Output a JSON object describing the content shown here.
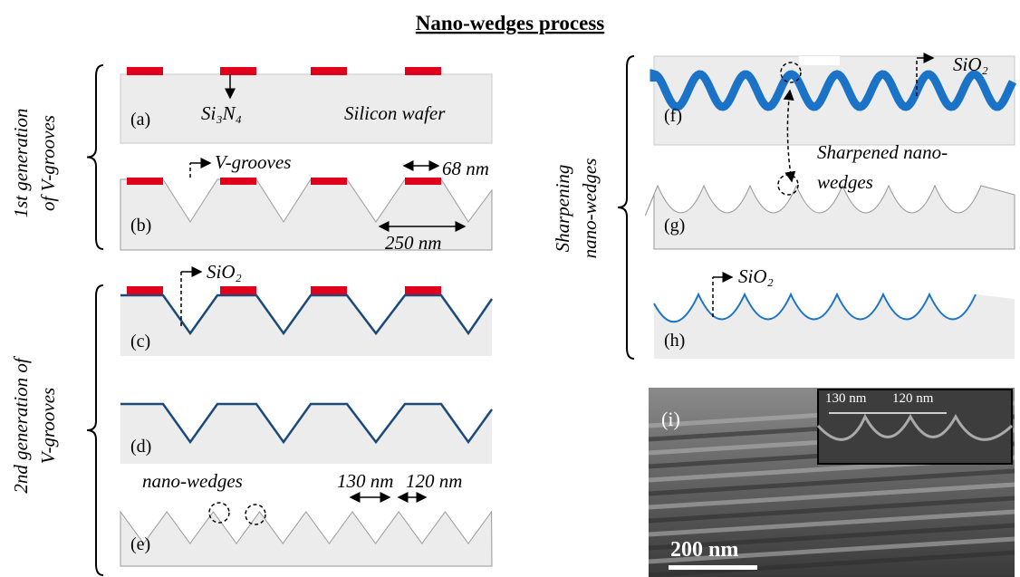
{
  "header": {
    "title": "Nano-wedges process"
  },
  "groups": [
    {
      "lines": [
        "1st generation",
        "of V-grooves"
      ]
    },
    {
      "lines": [
        "2nd generation of",
        "V-grooves"
      ]
    },
    {
      "lines": [
        "Sharpening",
        "nano-wedges"
      ]
    }
  ],
  "panels": {
    "a": {
      "label": "(a)",
      "annotations": [
        "Si₃N₄",
        "Silicon wafer"
      ]
    },
    "b": {
      "label": "(b)",
      "annotations": [
        "V-grooves",
        "68 nm",
        "250 nm"
      ]
    },
    "c": {
      "label": "(c)",
      "annotations": [
        "SiO₂"
      ]
    },
    "d": {
      "label": "(d)"
    },
    "e": {
      "label": "(e)",
      "annotations": [
        "nano-wedges",
        "130 nm",
        "120 nm"
      ]
    },
    "f": {
      "label": "(f)",
      "annotations": [
        "SiO₂"
      ]
    },
    "g": {
      "label": "(g)",
      "annotations": [
        "Sharpened nano-",
        "wedges"
      ]
    },
    "h": {
      "label": "(h)",
      "annotations": [
        "SiO₂"
      ]
    },
    "i": {
      "label": "(i)",
      "annotations": [
        "130 nm",
        "120 nm",
        "200 nm"
      ]
    }
  }
}
